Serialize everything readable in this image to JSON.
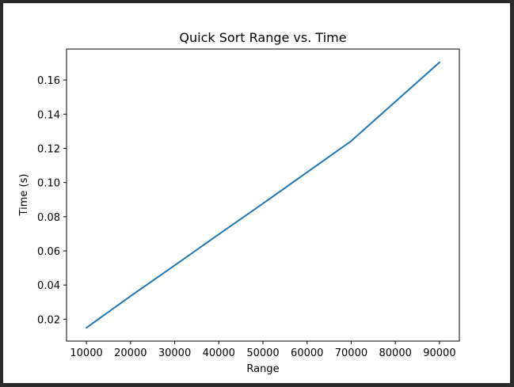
{
  "chart_data": {
    "type": "line",
    "title": "Quick Sort Range vs. Time",
    "xlabel": "Range",
    "ylabel": "Time (s)",
    "x": [
      10000,
      20000,
      30000,
      40000,
      50000,
      60000,
      70000,
      80000,
      90000
    ],
    "series": [
      {
        "values": [
          0.015,
          0.0335,
          0.0515,
          0.0697,
          0.0877,
          0.106,
          0.1243,
          0.1473,
          0.1703
        ],
        "color": "#1f77b4"
      }
    ],
    "xlim": [
      5500,
      94500
    ],
    "ylim": [
      0.0072,
      0.1781
    ],
    "xticks": [
      10000,
      20000,
      30000,
      40000,
      50000,
      60000,
      70000,
      80000,
      90000
    ],
    "yticks": [
      0.02,
      0.04,
      0.06,
      0.08,
      0.1,
      0.12,
      0.14,
      0.16
    ],
    "ytick_labels": [
      "0.02",
      "0.04",
      "0.06",
      "0.08",
      "0.10",
      "0.12",
      "0.14",
      "0.16"
    ],
    "grid": false,
    "legend": "none"
  }
}
